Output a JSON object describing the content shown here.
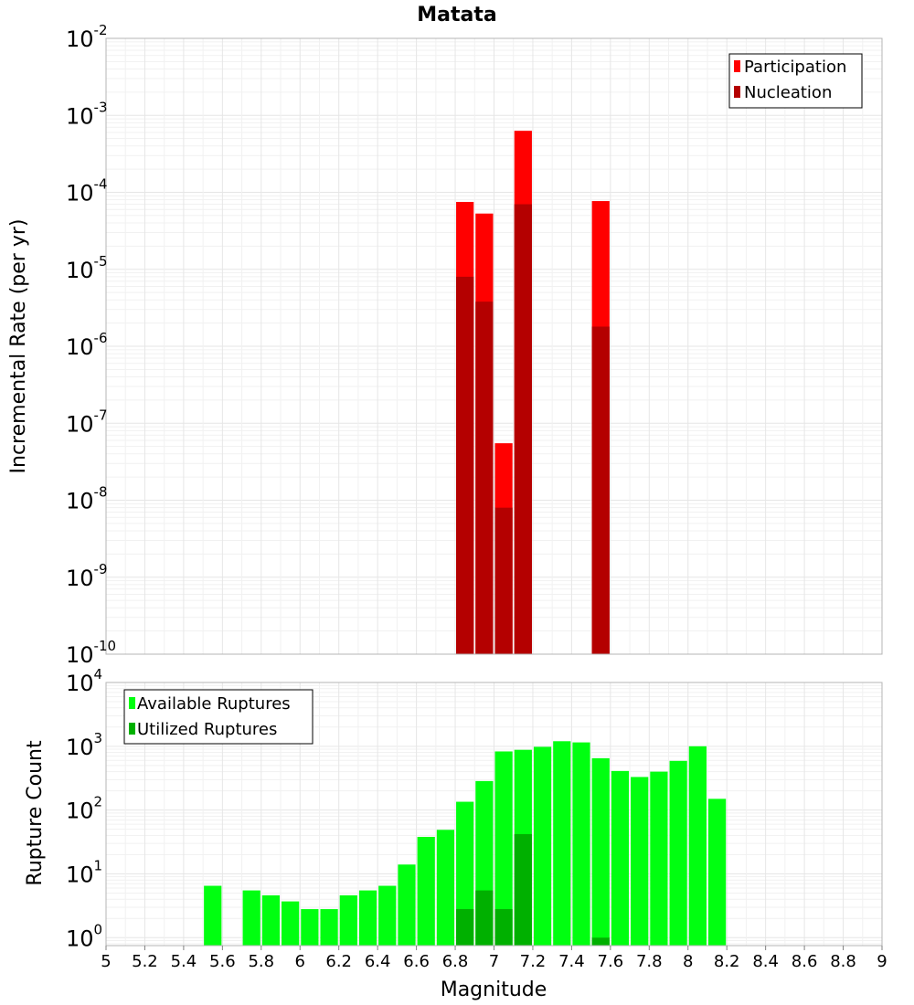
{
  "chart_data": [
    {
      "type": "bar",
      "title": "Matata",
      "ylabel": "Incremental Rate (per yr)",
      "xlim": [
        5,
        9
      ],
      "ylim": [
        1e-10,
        0.01
      ],
      "yscale": "log",
      "grid": true,
      "legend_position": "top-right",
      "bar_width": 0.1,
      "y_ticks": [
        {
          "base": "10",
          "exp": "-2",
          "value": 0.01
        },
        {
          "base": "10",
          "exp": "-3",
          "value": 0.001
        },
        {
          "base": "10",
          "exp": "-4",
          "value": 0.0001
        },
        {
          "base": "10",
          "exp": "-5",
          "value": 1e-05
        },
        {
          "base": "10",
          "exp": "-6",
          "value": 1e-06
        },
        {
          "base": "10",
          "exp": "-7",
          "value": 1e-07
        },
        {
          "base": "10",
          "exp": "-8",
          "value": 1e-08
        },
        {
          "base": "10",
          "exp": "-9",
          "value": 1e-09
        },
        {
          "base": "10",
          "exp": "-10",
          "value": 1e-10
        }
      ],
      "series": [
        {
          "name": "Participation",
          "color": "#ff0000",
          "x": [
            6.85,
            6.95,
            7.05,
            7.15,
            7.55
          ],
          "values": [
            7.5e-05,
            5.3e-05,
            5.5e-08,
            0.00063,
            7.7e-05
          ]
        },
        {
          "name": "Nucleation",
          "color": "#b40000",
          "x": [
            6.85,
            6.95,
            7.05,
            7.15,
            7.55
          ],
          "values": [
            8e-06,
            3.8e-06,
            8e-09,
            7e-05,
            1.8e-06
          ]
        }
      ]
    },
    {
      "type": "bar",
      "xlabel": "Magnitude",
      "ylabel": "Rupture Count",
      "xlim": [
        5,
        9
      ],
      "ylim": [
        0.75,
        10000
      ],
      "yscale": "log",
      "grid": true,
      "legend_position": "top-left",
      "bar_width": 0.1,
      "x_ticks": [
        "5",
        "5.2",
        "5.4",
        "5.6",
        "5.8",
        "6",
        "6.2",
        "6.4",
        "6.6",
        "6.8",
        "7",
        "7.2",
        "7.4",
        "7.6",
        "7.8",
        "8",
        "8.2",
        "8.4",
        "8.6",
        "8.8",
        "9"
      ],
      "y_ticks": [
        {
          "base": "10",
          "exp": "4",
          "value": 10000
        },
        {
          "base": "10",
          "exp": "3",
          "value": 1000
        },
        {
          "base": "10",
          "exp": "2",
          "value": 100
        },
        {
          "base": "10",
          "exp": "1",
          "value": 10
        },
        {
          "base": "10",
          "exp": "0",
          "value": 1
        }
      ],
      "series": [
        {
          "name": "Available Ruptures",
          "color": "#00ff10",
          "x": [
            5.55,
            5.75,
            5.85,
            5.95,
            6.05,
            6.15,
            6.25,
            6.35,
            6.45,
            6.55,
            6.65,
            6.75,
            6.85,
            6.95,
            7.05,
            7.15,
            7.25,
            7.35,
            7.45,
            7.55,
            7.65,
            7.75,
            7.85,
            7.95,
            8.05,
            8.15
          ],
          "values": [
            6.5,
            5.5,
            4.6,
            3.7,
            2.8,
            2.8,
            4.6,
            5.5,
            6.5,
            14,
            38,
            49,
            135,
            285,
            830,
            880,
            980,
            1200,
            1150,
            650,
            410,
            330,
            400,
            590,
            1000,
            150
          ]
        },
        {
          "name": "Utilized Ruptures",
          "color": "#00b000",
          "x": [
            6.85,
            6.95,
            7.05,
            7.15,
            7.55
          ],
          "values": [
            2.8,
            5.5,
            2.8,
            42,
            1
          ]
        }
      ]
    }
  ]
}
